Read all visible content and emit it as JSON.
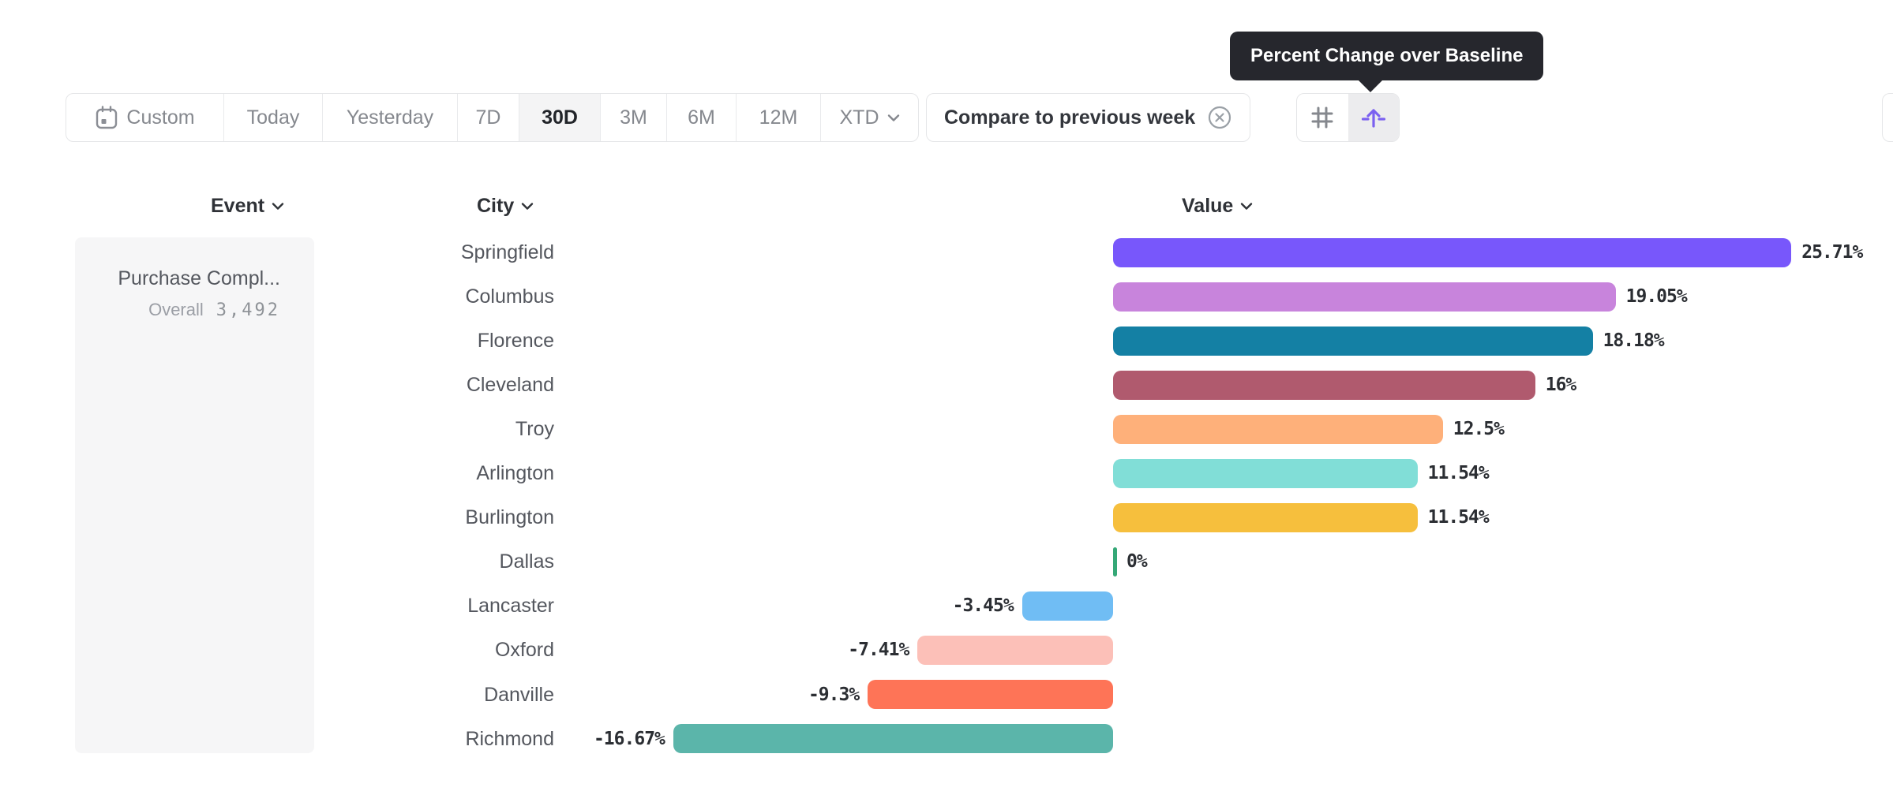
{
  "tooltip": {
    "text": "Percent Change over Baseline"
  },
  "toolbar": {
    "ranges": [
      {
        "label": "Custom",
        "selected": false
      },
      {
        "label": "Today",
        "selected": false
      },
      {
        "label": "Yesterday",
        "selected": false
      },
      {
        "label": "7D",
        "selected": false
      },
      {
        "label": "30D",
        "selected": true
      },
      {
        "label": "3M",
        "selected": false
      },
      {
        "label": "6M",
        "selected": false
      },
      {
        "label": "12M",
        "selected": false
      },
      {
        "label": "XTD",
        "selected": false
      }
    ],
    "compare_chip": {
      "label": "Compare to previous week",
      "close_icon": "circle-x-icon"
    },
    "view_toggle": {
      "left_icon": "number-grid-icon",
      "right_icon": "percent-change-baseline-icon",
      "active": "right"
    }
  },
  "columns": {
    "event_label": "Event",
    "city_label": "City",
    "value_label": "Value"
  },
  "event_panel": {
    "event_name": "Purchase Compl...",
    "overall_label": "Overall",
    "overall_value": "3,492"
  },
  "chart_data": {
    "type": "bar",
    "orientation": "horizontal",
    "group_by": "City",
    "metric": "Percent Change over Baseline",
    "categories": [
      "Springfield",
      "Columbus",
      "Florence",
      "Cleveland",
      "Troy",
      "Arlington",
      "Burlington",
      "Dallas",
      "Lancaster",
      "Oxford",
      "Danville",
      "Richmond"
    ],
    "values": [
      25.71,
      19.05,
      18.18,
      16,
      12.5,
      11.54,
      11.54,
      0,
      -3.45,
      -7.41,
      -9.3,
      -16.67
    ],
    "value_labels": [
      "25.71%",
      "19.05%",
      "18.18%",
      "16%",
      "12.5%",
      "11.54%",
      "11.54%",
      "0%",
      "-3.45%",
      "-7.41%",
      "-9.3%",
      "-16.67%"
    ],
    "bar_colors": [
      "#7857fb",
      "#c884dc",
      "#1480a4",
      "#b05a6e",
      "#feb07a",
      "#81ded7",
      "#f6bf3d",
      "#35a877",
      "#70bdf4",
      "#fcc0b8",
      "#fe7457",
      "#5bb5aa"
    ],
    "baseline": 0,
    "xlim": [
      -16.67,
      25.71
    ],
    "grid": false,
    "legend": "none"
  }
}
